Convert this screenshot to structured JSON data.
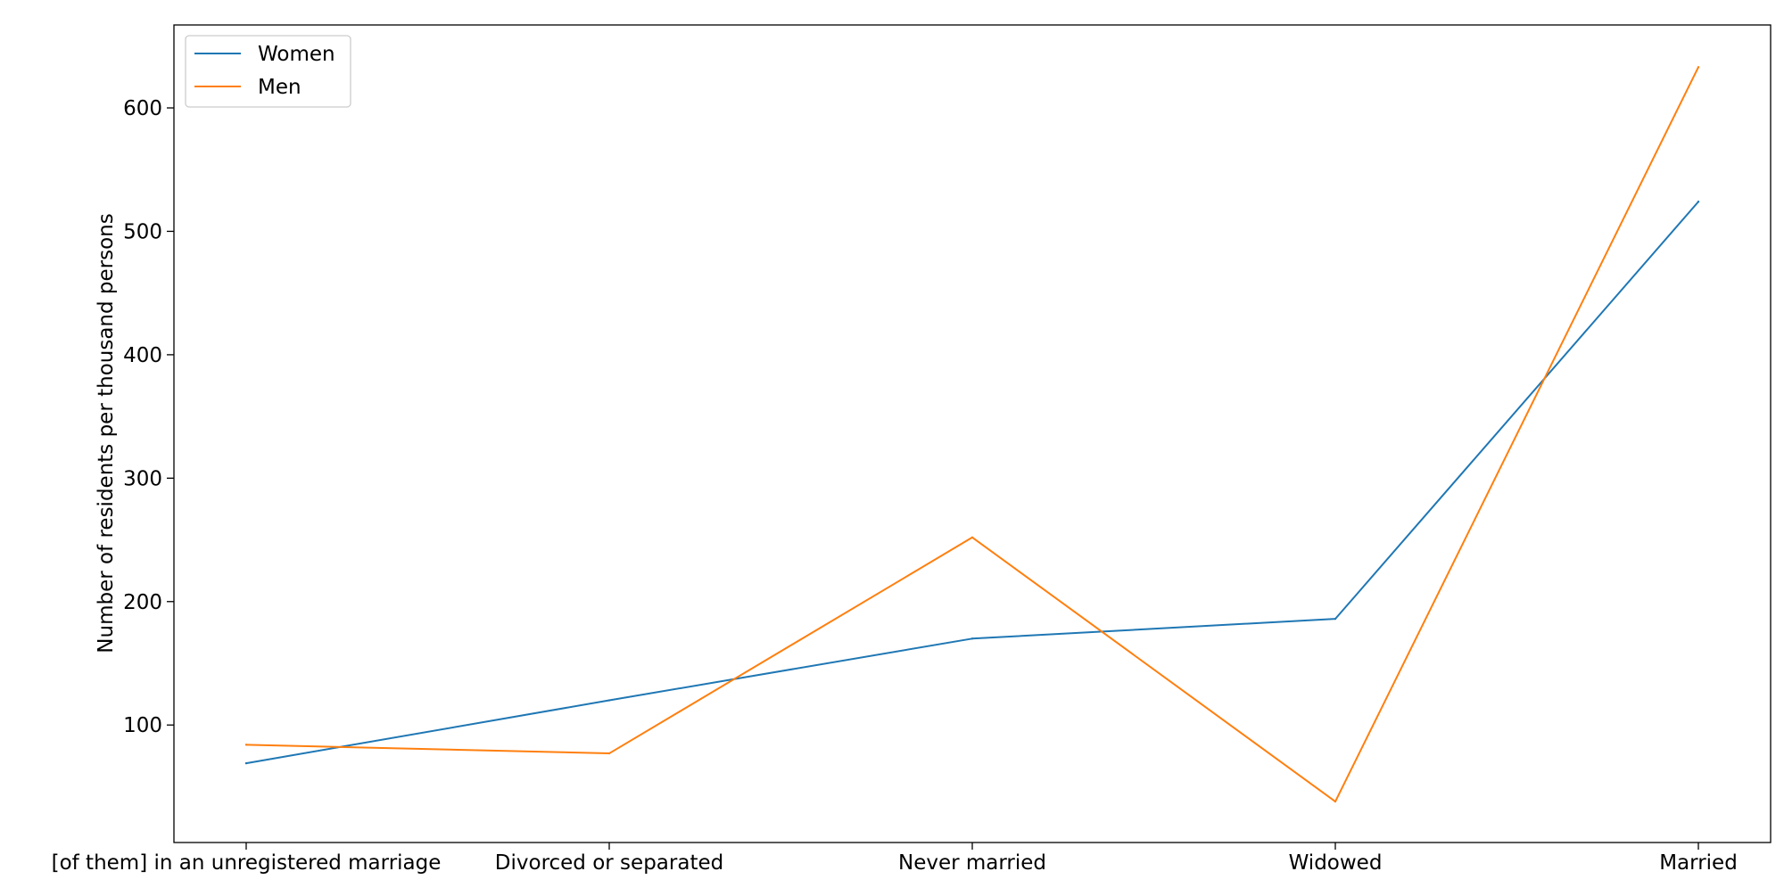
{
  "chart_data": {
    "type": "line",
    "title": "",
    "xlabel": "",
    "ylabel": "Number of residents per thousand persons",
    "categories": [
      "[of them] in an unregistered marriage",
      "Divorced or separated",
      "Never married",
      "Widowed",
      "Married"
    ],
    "series": [
      {
        "name": "Women",
        "color": "#1f77b4",
        "values": [
          69,
          120,
          170,
          186,
          524
        ]
      },
      {
        "name": "Men",
        "color": "#ff7f0e",
        "values": [
          84,
          77,
          252,
          38,
          633
        ]
      }
    ],
    "ylim": [
      4.8,
      667.2
    ],
    "yticks": [
      100,
      200,
      300,
      400,
      500,
      600
    ],
    "grid": false,
    "legend_position": "top-left"
  }
}
